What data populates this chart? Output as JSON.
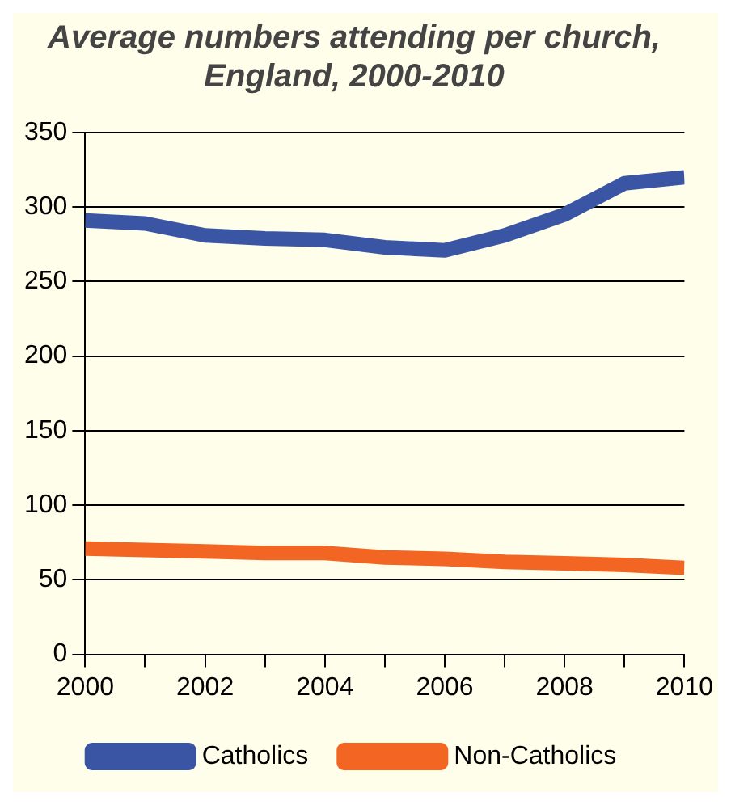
{
  "chart_data": {
    "type": "line",
    "title": [
      "Average numbers attending per church,",
      "England, 2000-2010"
    ],
    "x": [
      2000,
      2001,
      2002,
      2003,
      2004,
      2005,
      2006,
      2007,
      2008,
      2009,
      2010
    ],
    "series": [
      {
        "name": "Catholics",
        "color": "#3a55a4",
        "values": [
          291,
          289,
          281,
          279,
          278,
          273,
          271,
          281,
          295,
          316,
          320
        ]
      },
      {
        "name": "Non-Catholics",
        "color": "#f26522",
        "values": [
          71,
          70,
          69,
          68,
          68,
          65,
          64,
          62,
          61,
          60,
          58
        ]
      }
    ],
    "xlim": [
      2000,
      2010
    ],
    "xticks": [
      2000,
      {
        "value": 2001,
        "label": null
      },
      2002,
      {
        "value": 2003,
        "label": null
      },
      2004,
      {
        "value": 2005,
        "label": null
      },
      2006,
      {
        "value": 2007,
        "label": null
      },
      2008,
      {
        "value": 2009,
        "label": null
      },
      2010
    ],
    "ylim": [
      0,
      350
    ],
    "yticks": [
      0,
      50,
      100,
      150,
      200,
      250,
      300,
      350
    ],
    "grid": "y",
    "legend": "bottom",
    "marker": "none",
    "line_style": "solid"
  }
}
